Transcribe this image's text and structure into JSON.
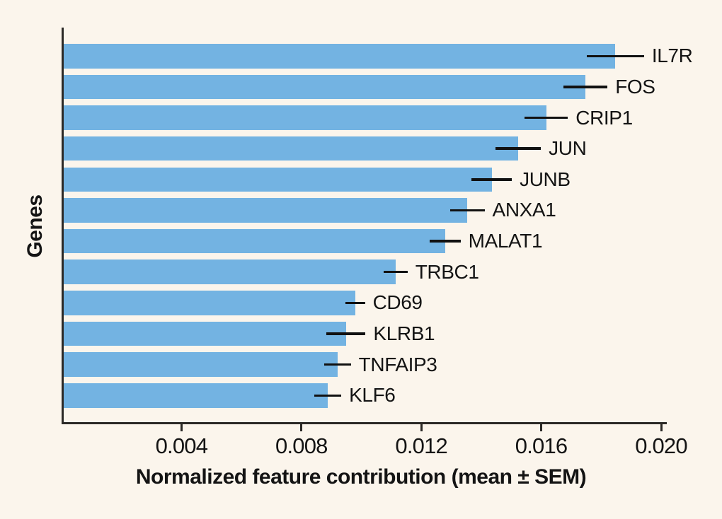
{
  "colors": {
    "background": "#FBF5EC",
    "bar": "#73B3E2",
    "axis": "#2B2926",
    "error_bar": "#111111",
    "text": "#141414"
  },
  "chart_data": {
    "type": "bar",
    "orientation": "horizontal",
    "title": "",
    "xlabel": "Normalized feature contribution (mean ± SEM)",
    "ylabel": "Genes",
    "xlim": [
      0,
      0.02
    ],
    "xticks": [
      0.004,
      0.008,
      0.012,
      0.016,
      0.02
    ],
    "xtick_labels": [
      "0.004",
      "0.008",
      "0.012",
      "0.016",
      "0.020"
    ],
    "grid": false,
    "legend": false,
    "error_bars": "SEM",
    "categories": [
      "IL7R",
      "FOS",
      "CRIP1",
      "JUN",
      "JUNB",
      "ANXA1",
      "MALAT1",
      "TRBC1",
      "CD69",
      "KLRB1",
      "TNFAIP3",
      "KLF6"
    ],
    "values": [
      0.01847,
      0.01747,
      0.01617,
      0.01523,
      0.01435,
      0.01354,
      0.01279,
      0.01114,
      0.0098,
      0.00949,
      0.00921,
      0.00888
    ],
    "sem": [
      0.00096,
      0.00074,
      0.00072,
      0.00076,
      0.00067,
      0.00057,
      0.00052,
      0.0004,
      0.00032,
      0.00065,
      0.00044,
      0.00045
    ]
  }
}
